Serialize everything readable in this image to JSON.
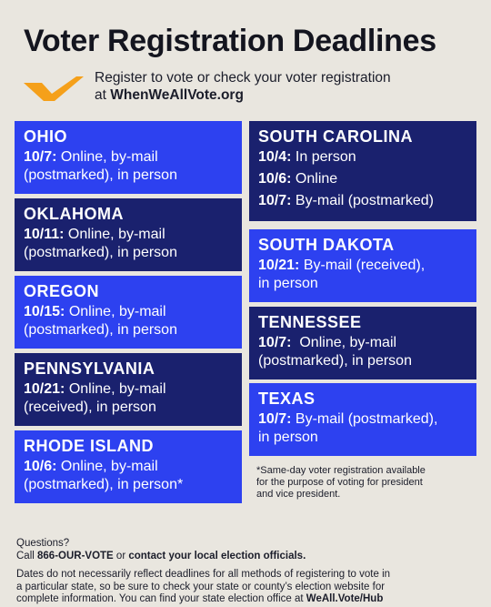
{
  "header": {
    "title": "Voter Registration Deadlines",
    "subtitle_line1": "Register to vote or check your voter registration",
    "subtitle_line2_prefix": "at ",
    "subtitle_link": "WhenWeAllVote.org",
    "logo_icon": "check-logo-icon",
    "logo_color": "#f5a01a"
  },
  "colors": {
    "bright_card": "#2d41f0",
    "navy_card": "#1a216e",
    "background": "#e9e6df"
  },
  "states": {
    "ohio": {
      "name": "OHIO",
      "lines": [
        {
          "date": "10/7:",
          "text": " Online, by-mail"
        },
        {
          "date": "",
          "text": "(postmarked), in person"
        }
      ]
    },
    "oklahoma": {
      "name": "OKLAHOMA",
      "lines": [
        {
          "date": "10/11:",
          "text": " Online, by-mail"
        },
        {
          "date": "",
          "text": "(postmarked), in person"
        }
      ]
    },
    "oregon": {
      "name": "OREGON",
      "lines": [
        {
          "date": "10/15:",
          "text": " Online, by-mail"
        },
        {
          "date": "",
          "text": "(postmarked), in person"
        }
      ]
    },
    "pennsylvania": {
      "name": "PENNSYLVANIA",
      "lines": [
        {
          "date": "10/21:",
          "text": " Online, by-mail"
        },
        {
          "date": "",
          "text": "(received), in person"
        }
      ]
    },
    "rhode_island": {
      "name": "RHODE ISLAND",
      "lines": [
        {
          "date": "10/6:",
          "text": " Online, by-mail"
        },
        {
          "date": "",
          "text": "(postmarked), in person*"
        }
      ]
    },
    "south_carolina": {
      "name": "SOUTH CAROLINA",
      "lines": [
        {
          "date": "10/4:",
          "text": " In person"
        },
        {
          "date": "10/6:",
          "text": " Online"
        },
        {
          "date": "10/7:",
          "text": " By-mail (postmarked)"
        }
      ]
    },
    "south_dakota": {
      "name": "SOUTH DAKOTA",
      "lines": [
        {
          "date": "10/21:",
          "text": " By-mail (received),"
        },
        {
          "date": "",
          "text": "in person"
        }
      ]
    },
    "tennessee": {
      "name": "TENNESSEE",
      "lines": [
        {
          "date": "10/7:",
          "text": "  Online, by-mail"
        },
        {
          "date": "",
          "text": "(postmarked), in person"
        }
      ]
    },
    "texas": {
      "name": "TEXAS",
      "lines": [
        {
          "date": "10/7:",
          "text": " By-mail (postmarked),"
        },
        {
          "date": "",
          "text": "in person"
        }
      ]
    }
  },
  "note": {
    "line1": "*Same-day voter registration available",
    "line2": "for the purpose of voting for president",
    "line3": "and vice president."
  },
  "footer": {
    "questions": "Questions?",
    "call_prefix": "Call ",
    "phone": "866-OUR-VOTE",
    "call_middle": " or ",
    "contact": "contact your local election officials.",
    "disclaimer_line1": "Dates do not necessarily reflect deadlines for all methods of registering to vote in",
    "disclaimer_line2": "a particular state, so be sure to check your state or county’s election website for",
    "disclaimer_line3_prefix": "complete information. You can find your state election office at ",
    "hub_link": "WeAll.Vote/Hub"
  }
}
